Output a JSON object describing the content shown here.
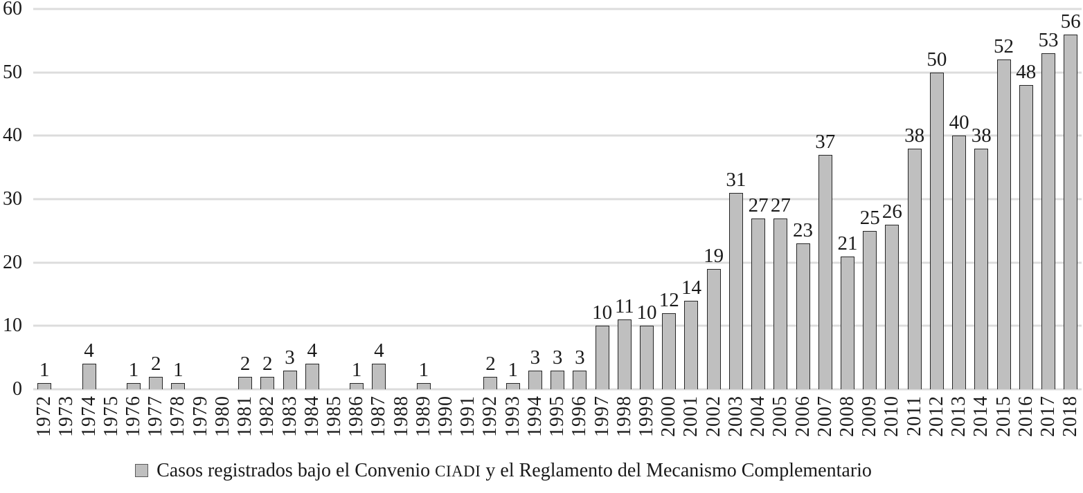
{
  "chart_data": {
    "type": "bar",
    "title": "",
    "xlabel": "",
    "ylabel": "",
    "categories": [
      "1972",
      "1973",
      "1974",
      "1975",
      "1976",
      "1977",
      "1978",
      "1979",
      "1980",
      "1981",
      "1982",
      "1983",
      "1984",
      "1985",
      "1986",
      "1987",
      "1988",
      "1989",
      "1990",
      "1991",
      "1992",
      "1993",
      "1994",
      "1995",
      "1996",
      "1997",
      "1998",
      "1999",
      "2000",
      "2001",
      "2002",
      "2003",
      "2004",
      "2005",
      "2006",
      "2007",
      "2008",
      "2009",
      "2010",
      "2011",
      "2012",
      "2013",
      "2014",
      "2015",
      "2016",
      "2017",
      "2018"
    ],
    "values": [
      1,
      0,
      4,
      0,
      1,
      2,
      1,
      0,
      0,
      2,
      2,
      3,
      4,
      0,
      1,
      4,
      0,
      1,
      0,
      0,
      2,
      1,
      3,
      3,
      3,
      10,
      11,
      10,
      12,
      14,
      19,
      31,
      27,
      27,
      23,
      37,
      21,
      25,
      26,
      38,
      50,
      40,
      38,
      52,
      48,
      53,
      56
    ],
    "bar_labels_shown": true,
    "ylim": [
      0,
      60
    ],
    "yticks": [
      0,
      10,
      20,
      30,
      40,
      50,
      60
    ],
    "grid": true,
    "legend_position": "bottom",
    "legend": {
      "prefix": "Casos registrados bajo el Convenio ",
      "acronym": "CIADI",
      "suffix": " y el Reglamento del Mecanismo Complementario"
    }
  },
  "colors": {
    "background": "#ffffff",
    "bar_fill": "#bfbfbf",
    "bar_border": "#262626",
    "gridline": "#dcdcdc",
    "text": "#1a1a1a",
    "legend_swatch_border": "#595959"
  }
}
